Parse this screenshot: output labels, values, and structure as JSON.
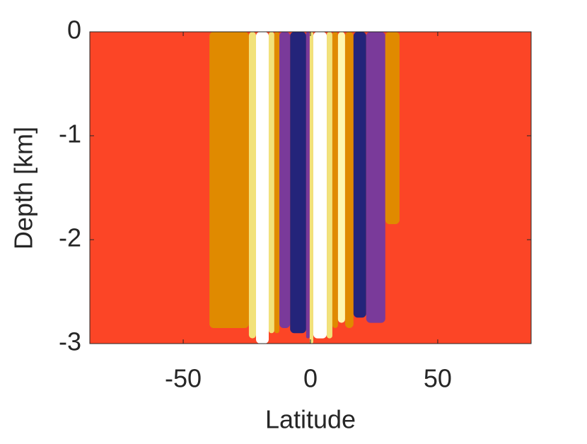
{
  "chart_data": {
    "type": "contour",
    "x_label": "Latitude",
    "y_label": "Depth [km]",
    "xlim": [
      -86.7,
      86.7
    ],
    "ylim": [
      -3,
      0
    ],
    "xticks": [
      -50,
      0,
      50
    ],
    "yticks": [
      0,
      -1,
      -2,
      -3
    ],
    "background": "#fc4526",
    "stripes": [
      {
        "color": "#e08a00",
        "x": [
          -39.7,
          -24.2
        ],
        "depth": -2.85
      },
      {
        "color": "#f2e27a",
        "x": [
          -24.2,
          -21.4
        ],
        "depth": -2.95
      },
      {
        "color": "#ffffff",
        "x": [
          -21.4,
          -16.4
        ],
        "depth": -3
      },
      {
        "color": "#f2e27a",
        "x": [
          -16.4,
          -14.2
        ],
        "depth": -2.9
      },
      {
        "color": "#e08a00",
        "x": [
          -14.2,
          -12.2
        ],
        "depth": -2.9
      },
      {
        "color": "#7a3a9a",
        "x": [
          -12.2,
          -8.0
        ],
        "depth": -2.85
      },
      {
        "color": "#24247a",
        "x": [
          -8.0,
          -1.7
        ],
        "depth": -2.9
      },
      {
        "color": "#7a3a9a",
        "x": [
          -1.7,
          -0.3
        ],
        "depth": -2.95
      },
      {
        "color": "#f2e27a",
        "x": [
          -0.3,
          1.1
        ],
        "depth": -3
      },
      {
        "color": "#ffffff",
        "x": [
          1.1,
          6.4
        ],
        "depth": -2.95
      },
      {
        "color": "#f2e27a",
        "x": [
          6.4,
          8.6
        ],
        "depth": -2.95
      },
      {
        "color": "#e08a00",
        "x": [
          8.6,
          10.8
        ],
        "depth": -2.85
      },
      {
        "color": "#fff6b0",
        "x": [
          10.8,
          13.6
        ],
        "depth": -2.8
      },
      {
        "color": "#e08a00",
        "x": [
          13.6,
          16.9
        ],
        "depth": -2.85
      },
      {
        "color": "#24247a",
        "x": [
          16.9,
          21.9
        ],
        "depth": -2.75
      },
      {
        "color": "#7a3a9a",
        "x": [
          21.9,
          29.4
        ],
        "depth": -2.8
      },
      {
        "color": "#e08a00",
        "x": [
          29.4,
          35.0
        ],
        "depth": -1.85
      }
    ]
  }
}
